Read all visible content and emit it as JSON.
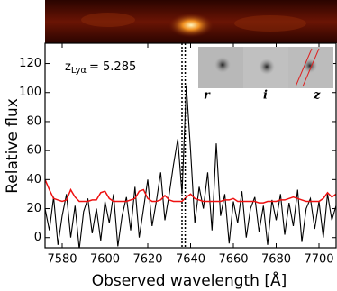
{
  "chart_data": {
    "type": "line",
    "x_label": "Observed wavelength [Å]",
    "y_label": "Relative flux",
    "annotation": {
      "symbol": "z",
      "subscript": "Lyα",
      "text": "= 5.285"
    },
    "inset_labels": [
      "r",
      "i",
      "z"
    ],
    "x": [
      7572,
      7574,
      7576,
      7578,
      7580,
      7582,
      7584,
      7586,
      7588,
      7590,
      7592,
      7594,
      7596,
      7598,
      7600,
      7602,
      7604,
      7606,
      7608,
      7610,
      7612,
      7614,
      7616,
      7618,
      7620,
      7622,
      7624,
      7626,
      7628,
      7630,
      7632,
      7634,
      7636,
      7638,
      7640,
      7642,
      7644,
      7646,
      7648,
      7650,
      7652,
      7654,
      7656,
      7658,
      7660,
      7662,
      7664,
      7666,
      7668,
      7670,
      7672,
      7674,
      7676,
      7678,
      7680,
      7682,
      7684,
      7686,
      7688,
      7690,
      7692,
      7694,
      7696,
      7698,
      7700,
      7702,
      7704,
      7706,
      7708
    ],
    "series": [
      {
        "color": "#000000",
        "values": [
          20,
          5,
          28,
          -5,
          15,
          30,
          0,
          22,
          -8,
          18,
          27,
          3,
          20,
          -2,
          25,
          10,
          30,
          -6,
          15,
          28,
          5,
          35,
          0,
          20,
          40,
          8,
          25,
          45,
          12,
          30,
          50,
          68,
          30,
          105,
          60,
          10,
          35,
          20,
          45,
          5,
          65,
          15,
          30,
          -4,
          25,
          10,
          32,
          0,
          20,
          28,
          4,
          22,
          -5,
          26,
          12,
          30,
          2,
          24,
          8,
          33,
          -3,
          20,
          27,
          6,
          25,
          0,
          30,
          12,
          22
        ]
      },
      {
        "color": "#ee1111",
        "values": [
          40,
          33,
          27,
          26,
          25,
          26,
          33,
          28,
          25,
          25,
          25,
          26,
          26,
          31,
          32,
          27,
          25,
          25,
          25,
          25,
          26,
          27,
          32,
          33,
          27,
          25,
          25,
          26,
          29,
          26,
          25,
          25,
          25,
          28,
          30,
          27,
          26,
          25,
          25,
          25,
          25,
          25,
          26,
          26,
          27,
          25,
          25,
          25,
          25,
          25,
          24,
          24,
          25,
          25,
          25,
          26,
          26,
          27,
          28,
          27,
          26,
          25,
          25,
          25,
          25,
          27,
          31,
          28,
          30
        ]
      }
    ],
    "vlines": [
      7636,
      7637.5
    ],
    "xlim": [
      7572,
      7708
    ],
    "ylim": [
      -7,
      134
    ],
    "xticks": [
      7580,
      7600,
      7620,
      7640,
      7660,
      7680,
      7700
    ],
    "yticks": [
      0,
      20,
      40,
      60,
      80,
      100,
      120
    ]
  }
}
